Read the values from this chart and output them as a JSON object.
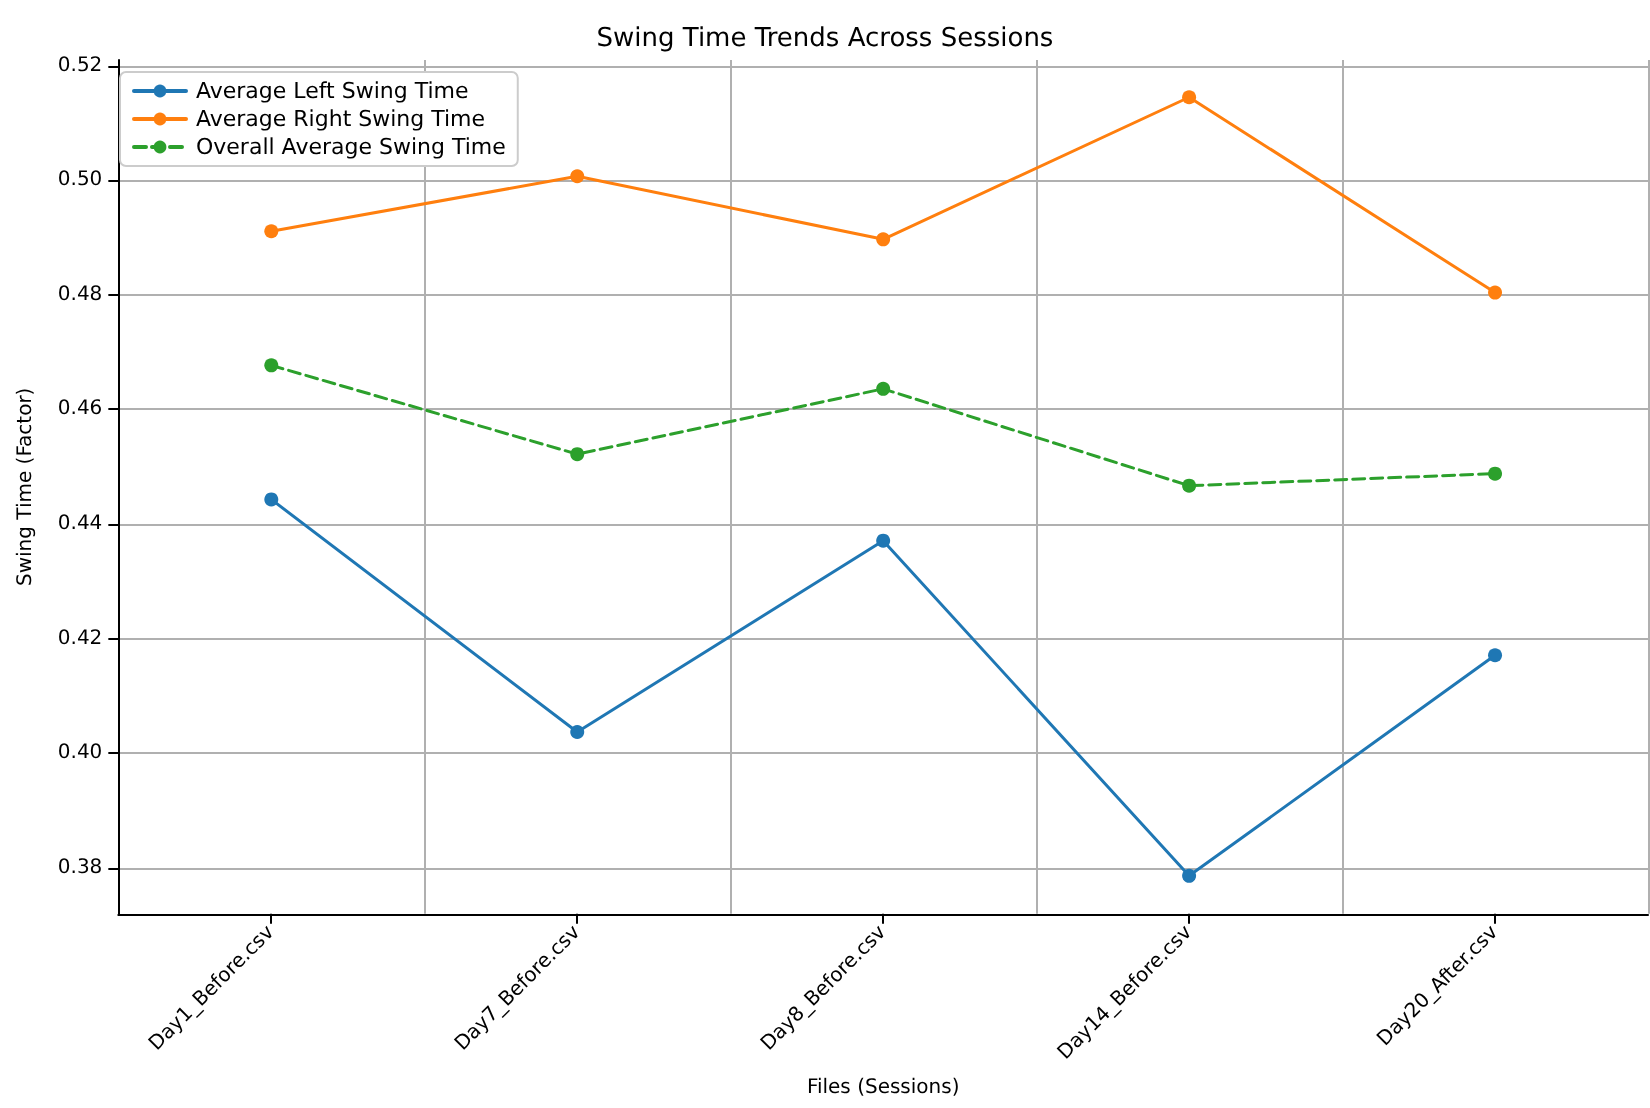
{
  "chart_data": {
    "type": "line",
    "title": "Swing Time Trends Across Sessions",
    "xlabel": "Files (Sessions)",
    "ylabel": "Swing Time (Factor)",
    "categories": [
      "Day1_Before.csv",
      "Day7_Before.csv",
      "Day8_Before.csv",
      "Day14_Before.csv",
      "Day20_After.csv"
    ],
    "series": [
      {
        "name": "Average Left Swing Time",
        "color": "#1f77b4",
        "values": [
          0.4443,
          0.4037,
          0.4371,
          0.3786,
          0.4171
        ]
      },
      {
        "name": "Average Right Swing Time",
        "color": "#ff7f0e",
        "values": [
          0.4911,
          0.5007,
          0.4897,
          0.5145,
          0.4804
        ]
      },
      {
        "name": "Overall Average Swing Time",
        "color": "#2ca02c",
        "values": [
          0.4677,
          0.4522,
          0.4636,
          0.4467,
          0.4488
        ],
        "line_style": "dashed"
      }
    ],
    "ylim": [
      0.372,
      0.521
    ],
    "yticks": [
      0.38,
      {
        "value": 0.4,
        "label": "0.40"
      },
      0.42,
      0.44,
      0.46,
      0.48,
      {
        "value": 0.5,
        "label": "0.50"
      },
      0.52
    ],
    "grid": true,
    "legend": "top left",
    "marker": "circle",
    "line_style": "solid"
  }
}
